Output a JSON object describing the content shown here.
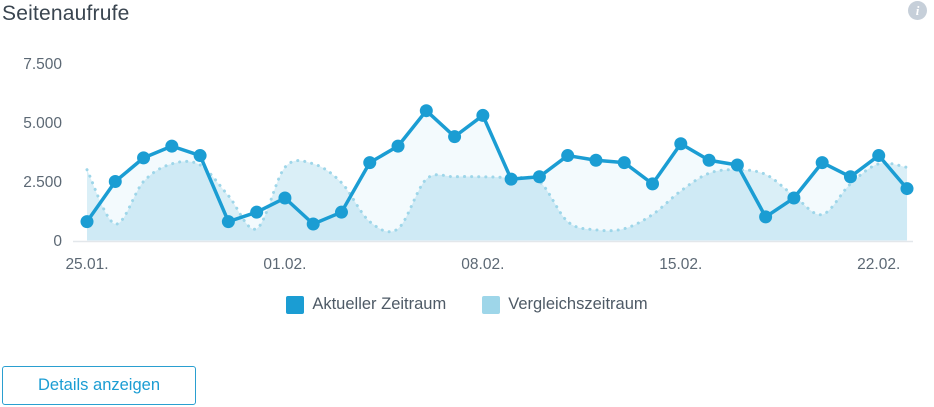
{
  "header": {
    "title": "Seitenaufrufe",
    "info_glyph": "i"
  },
  "chart_data": {
    "type": "line",
    "title": "Seitenaufrufe",
    "x": [
      "25.01.",
      "26.01.",
      "27.01.",
      "28.01.",
      "29.01.",
      "30.01.",
      "31.01.",
      "01.02.",
      "02.02.",
      "03.02.",
      "04.02.",
      "05.02.",
      "06.02.",
      "07.02.",
      "08.02.",
      "09.02.",
      "10.02.",
      "11.02.",
      "12.02.",
      "13.02.",
      "14.02.",
      "15.02.",
      "16.02.",
      "17.02.",
      "18.02.",
      "19.02.",
      "20.02.",
      "21.02.",
      "22.02.",
      "23.02."
    ],
    "x_tick_indices": [
      0,
      7,
      14,
      21,
      28
    ],
    "x_tick_labels": [
      "25.01.",
      "01.02.",
      "08.02.",
      "15.02.",
      "22.02."
    ],
    "y_ticks": [
      0,
      2500,
      5000,
      7500
    ],
    "y_tick_labels": [
      "0",
      "2.500",
      "5.000",
      "7.500"
    ],
    "ylim": [
      0,
      7500
    ],
    "grid": false,
    "legend_position": "bottom",
    "series": [
      {
        "name": "Aktueller Zeitraum",
        "style": "solid-markers",
        "color": "#1b9dd3",
        "fill_opacity": 0.05,
        "values": [
          800,
          2500,
          3500,
          4000,
          3600,
          800,
          1200,
          1800,
          700,
          1200,
          3300,
          4000,
          5500,
          4400,
          5300,
          2600,
          2700,
          3600,
          3400,
          3300,
          2400,
          4100,
          3400,
          3200,
          1000,
          1800,
          3300,
          2700,
          3600,
          2200
        ]
      },
      {
        "name": "Vergleichszeitraum",
        "style": "dotted-area",
        "color": "#9ed6e9",
        "fill_opacity": 0.38,
        "values": [
          3000,
          700,
          2500,
          3250,
          3200,
          1900,
          500,
          3100,
          3250,
          2450,
          800,
          500,
          2600,
          2700,
          2700,
          2650,
          2500,
          800,
          450,
          500,
          1100,
          2100,
          2850,
          3000,
          2800,
          1900,
          1100,
          2400,
          3250,
          3100
        ]
      }
    ],
    "axis_text_color": "#5c6874",
    "baseline_color": "#e3e7eb"
  },
  "button": {
    "label": "Details anzeigen"
  }
}
